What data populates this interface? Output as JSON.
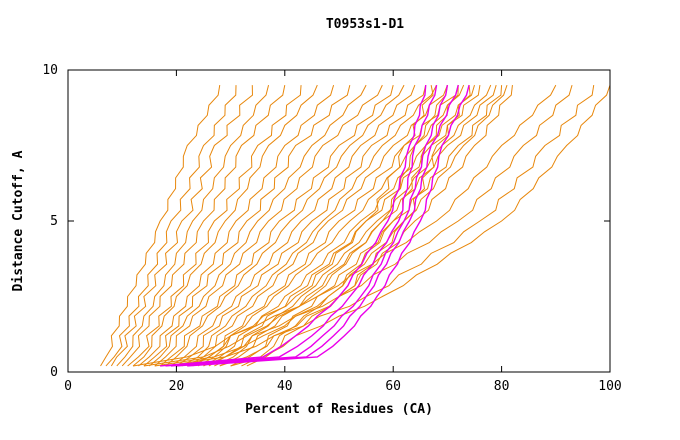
{
  "chart_data": {
    "type": "line",
    "title": "T0953s1-D1",
    "xlabel": "Percent of Residues (CA)",
    "ylabel": "Distance Cutoff, A",
    "xlim": [
      0,
      100
    ],
    "ylim": [
      0,
      10
    ],
    "x_ticks": [
      0,
      20,
      40,
      60,
      80,
      100
    ],
    "y_ticks": [
      0,
      5,
      10
    ],
    "grid": false,
    "legend": "none",
    "colors": {
      "orange": "#e8870b",
      "magenta": "#ea00ea",
      "axis": "#000000",
      "background": "#ffffff"
    },
    "y_anchors": [
      0.2,
      0.5,
      1.2,
      2.5,
      5,
      7.5,
      9.5
    ],
    "series": [
      {
        "group": "orange",
        "x": [
          6,
          7,
          8,
          11,
          17,
          22,
          28
        ]
      },
      {
        "group": "orange",
        "x": [
          7,
          8.5,
          9.5,
          13,
          19,
          25,
          31
        ]
      },
      {
        "group": "orange",
        "x": [
          8,
          9,
          10.5,
          14,
          21,
          27,
          34
        ]
      },
      {
        "group": "orange",
        "x": [
          9,
          10.5,
          12,
          16,
          23,
          30,
          37
        ]
      },
      {
        "group": "orange",
        "x": [
          10,
          11.5,
          13,
          17,
          25,
          32,
          40
        ]
      },
      {
        "group": "orange",
        "x": [
          11,
          13,
          14.5,
          19,
          27,
          35,
          43
        ]
      },
      {
        "group": "orange",
        "x": [
          12,
          14,
          15.5,
          20,
          29,
          37,
          46
        ]
      },
      {
        "group": "orange",
        "x": [
          13,
          15,
          17,
          22,
          31,
          40,
          49
        ]
      },
      {
        "group": "orange",
        "x": [
          14,
          16,
          18,
          23,
          33,
          42,
          52
        ]
      },
      {
        "group": "orange",
        "x": [
          15,
          17,
          19,
          25,
          35,
          45,
          55
        ]
      },
      {
        "group": "orange",
        "x": [
          16,
          18,
          20,
          26,
          37,
          47,
          58
        ]
      },
      {
        "group": "orange",
        "x": [
          17,
          19,
          21.5,
          28,
          39,
          50,
          60
        ]
      },
      {
        "group": "orange",
        "x": [
          18,
          20,
          22.5,
          29,
          41,
          52,
          62
        ]
      },
      {
        "group": "orange",
        "x": [
          19,
          21.5,
          24,
          31,
          43,
          54,
          64
        ]
      },
      {
        "group": "orange",
        "x": [
          20,
          22.5,
          25,
          32,
          45,
          56,
          66
        ]
      },
      {
        "group": "orange",
        "x": [
          21,
          24,
          26.5,
          34,
          47,
          58,
          68
        ]
      },
      {
        "group": "orange",
        "x": [
          22,
          25,
          27.5,
          35,
          48,
          60,
          70
        ]
      },
      {
        "group": "orange",
        "x": [
          23,
          26,
          29,
          37,
          50,
          62,
          72
        ]
      },
      {
        "group": "orange",
        "x": [
          24,
          27,
          30,
          38,
          52,
          64,
          73
        ]
      },
      {
        "group": "orange",
        "x": [
          25,
          28,
          31.5,
          40,
          54,
          66,
          75
        ]
      },
      {
        "group": "orange",
        "x": [
          26,
          29,
          32.5,
          41,
          55,
          67,
          76
        ]
      },
      {
        "group": "orange",
        "x": [
          27,
          30.5,
          34,
          43,
          57,
          69,
          78
        ]
      },
      {
        "group": "orange",
        "x": [
          28,
          31.5,
          35,
          44,
          58,
          70,
          79
        ]
      },
      {
        "group": "orange",
        "x": [
          30,
          33.5,
          37,
          46,
          60,
          72,
          80
        ]
      },
      {
        "group": "orange",
        "x": [
          32,
          35.5,
          39,
          48,
          62,
          73,
          81
        ]
      },
      {
        "group": "orange",
        "x": [
          33,
          36.5,
          40,
          50,
          64,
          75,
          82
        ]
      },
      {
        "group": "orange",
        "x": [
          12,
          22,
          30,
          42,
          55,
          62,
          67
        ]
      },
      {
        "group": "orange",
        "x": [
          14,
          25,
          33,
          45,
          58,
          64,
          70
        ]
      },
      {
        "group": "orange",
        "x": [
          16,
          27,
          36,
          48,
          60,
          66,
          72
        ]
      },
      {
        "group": "orange",
        "x": [
          18,
          29,
          38,
          50,
          62,
          68,
          74
        ]
      },
      {
        "group": "orange",
        "x": [
          22,
          26,
          30,
          46,
          68,
          80,
          90
        ]
      },
      {
        "group": "orange",
        "x": [
          25,
          29,
          34,
          50,
          72,
          84,
          93
        ]
      },
      {
        "group": "orange",
        "x": [
          28,
          33,
          38,
          55,
          76,
          88,
          97
        ]
      },
      {
        "group": "orange",
        "x": [
          30,
          36,
          42,
          58,
          80,
          92,
          100
        ]
      },
      {
        "group": "magenta",
        "x": [
          17,
          36,
          42,
          50,
          59,
          63,
          66
        ]
      },
      {
        "group": "magenta",
        "x": [
          18,
          39,
          45,
          52,
          61,
          64,
          68
        ]
      },
      {
        "group": "magenta",
        "x": [
          19,
          42,
          47,
          54,
          62,
          66,
          70
        ]
      },
      {
        "group": "magenta",
        "x": [
          20,
          44,
          49,
          55,
          63,
          67,
          72
        ]
      },
      {
        "group": "magenta",
        "x": [
          22,
          46,
          51,
          57,
          65,
          69,
          74
        ]
      }
    ]
  }
}
